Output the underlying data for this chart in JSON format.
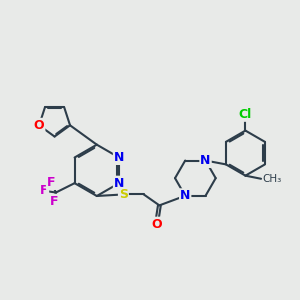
{
  "bg_color": "#e8eae8",
  "bond_color": "#2d3d4a",
  "bond_width": 1.5,
  "atom_colors": {
    "O": "#ff0000",
    "N": "#0000ee",
    "S": "#cccc00",
    "F": "#cc00cc",
    "Cl": "#00cc00",
    "C": "#2d3d4a"
  },
  "font_size_atom": 9,
  "fig_size": [
    3.0,
    3.0
  ],
  "dpi": 100
}
